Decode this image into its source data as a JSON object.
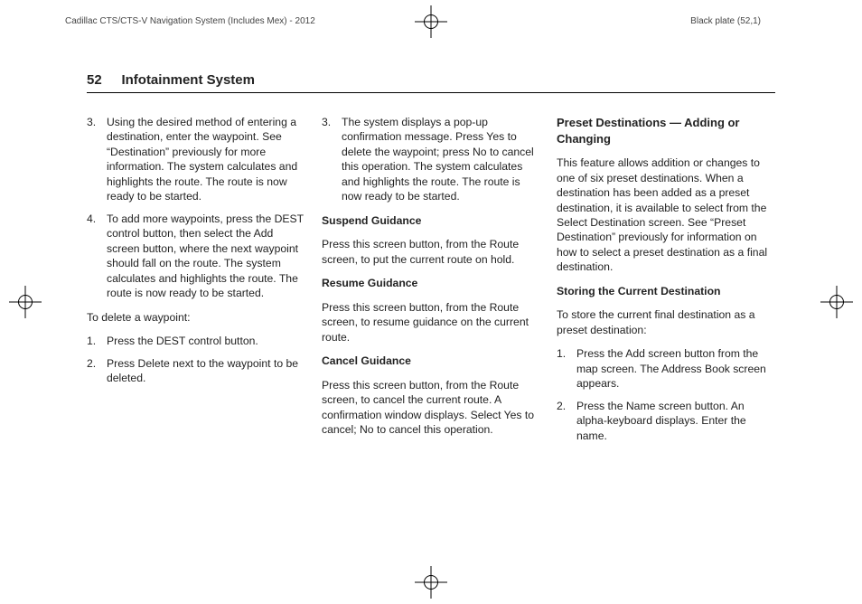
{
  "header": {
    "left": "Cadillac CTS/CTS-V Navigation System (Includes Mex) - 2012",
    "right": "Black plate (52,1)"
  },
  "page": {
    "number": "52",
    "chapter": "Infotainment System"
  },
  "col1": {
    "list1_item3": "Using the desired method of entering a destination, enter the waypoint. See “Destination” previously for more information. The system calculates and highlights the route. The route is now ready to be started.",
    "list1_item4": "To add more waypoints, press the DEST control button, then select the Add screen button, where the next waypoint should fall on the route. The system calculates and highlights the route. The route is now ready to be started.",
    "para_delete": "To delete a waypoint:",
    "list2_item1": "Press the DEST control button.",
    "list2_item2": "Press Delete next to the waypoint to be deleted."
  },
  "col2": {
    "list1_item3": "The system displays a pop-up confirmation message. Press Yes to delete the waypoint; press No to cancel this operation. The system calculates and highlights the route. The route is now ready to be started.",
    "h_suspend": "Suspend Guidance",
    "p_suspend": "Press this screen button, from the Route screen, to put the current route on hold.",
    "h_resume": "Resume Guidance",
    "p_resume": "Press this screen button, from the Route screen, to resume guidance on the current route.",
    "h_cancel": "Cancel Guidance",
    "p_cancel": "Press this screen button, from the Route screen, to cancel the current route. A confirmation window displays. Select Yes to cancel; No to cancel this operation."
  },
  "col3": {
    "sec_head": "Preset Destinations — Adding or Changing",
    "p_intro": "This feature allows addition or changes to one of six preset destinations. When a destination has been added as a preset destination, it is available to select from the Select Destination screen. See “Preset Destination” previously for information on how to select a preset destination as a final destination.",
    "h_store": "Storing the Current Destination",
    "p_store": "To store the current final destination as a preset destination:",
    "list_item1": "Press the Add screen button from the map screen. The Address Book screen appears.",
    "list_item2": "Press the Name screen button. An alpha-keyboard displays. Enter the name."
  }
}
